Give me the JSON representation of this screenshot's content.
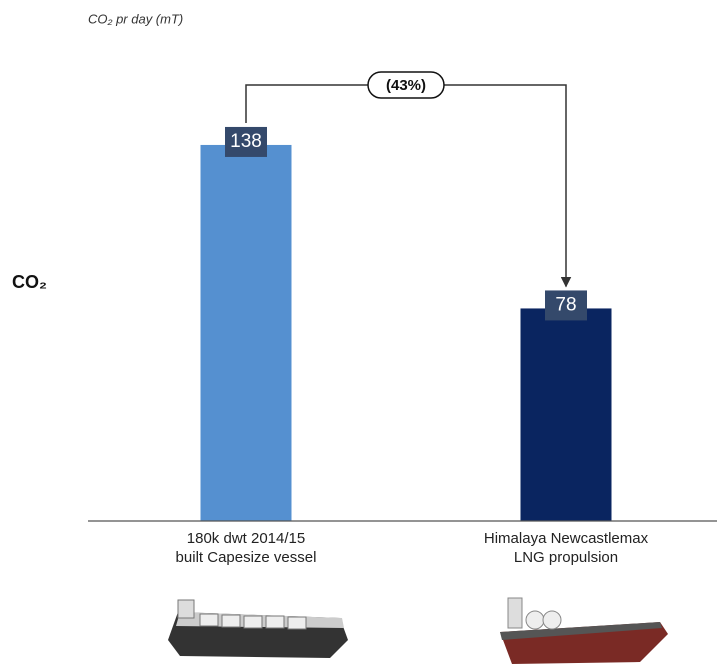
{
  "chart_data": {
    "type": "bar",
    "subtitle": "CO₂ pr day (mT)",
    "y_label": "CO₂",
    "categories": [
      [
        "180k dwt 2014/15",
        "built Capesize vessel"
      ],
      [
        "Himalaya Newcastlemax",
        "LNG propulsion"
      ]
    ],
    "values": [
      138,
      78
    ],
    "colors": [
      "#5590d0",
      "#0a2560"
    ],
    "annotation": "(43%)",
    "ylim": [
      0,
      160
    ]
  }
}
